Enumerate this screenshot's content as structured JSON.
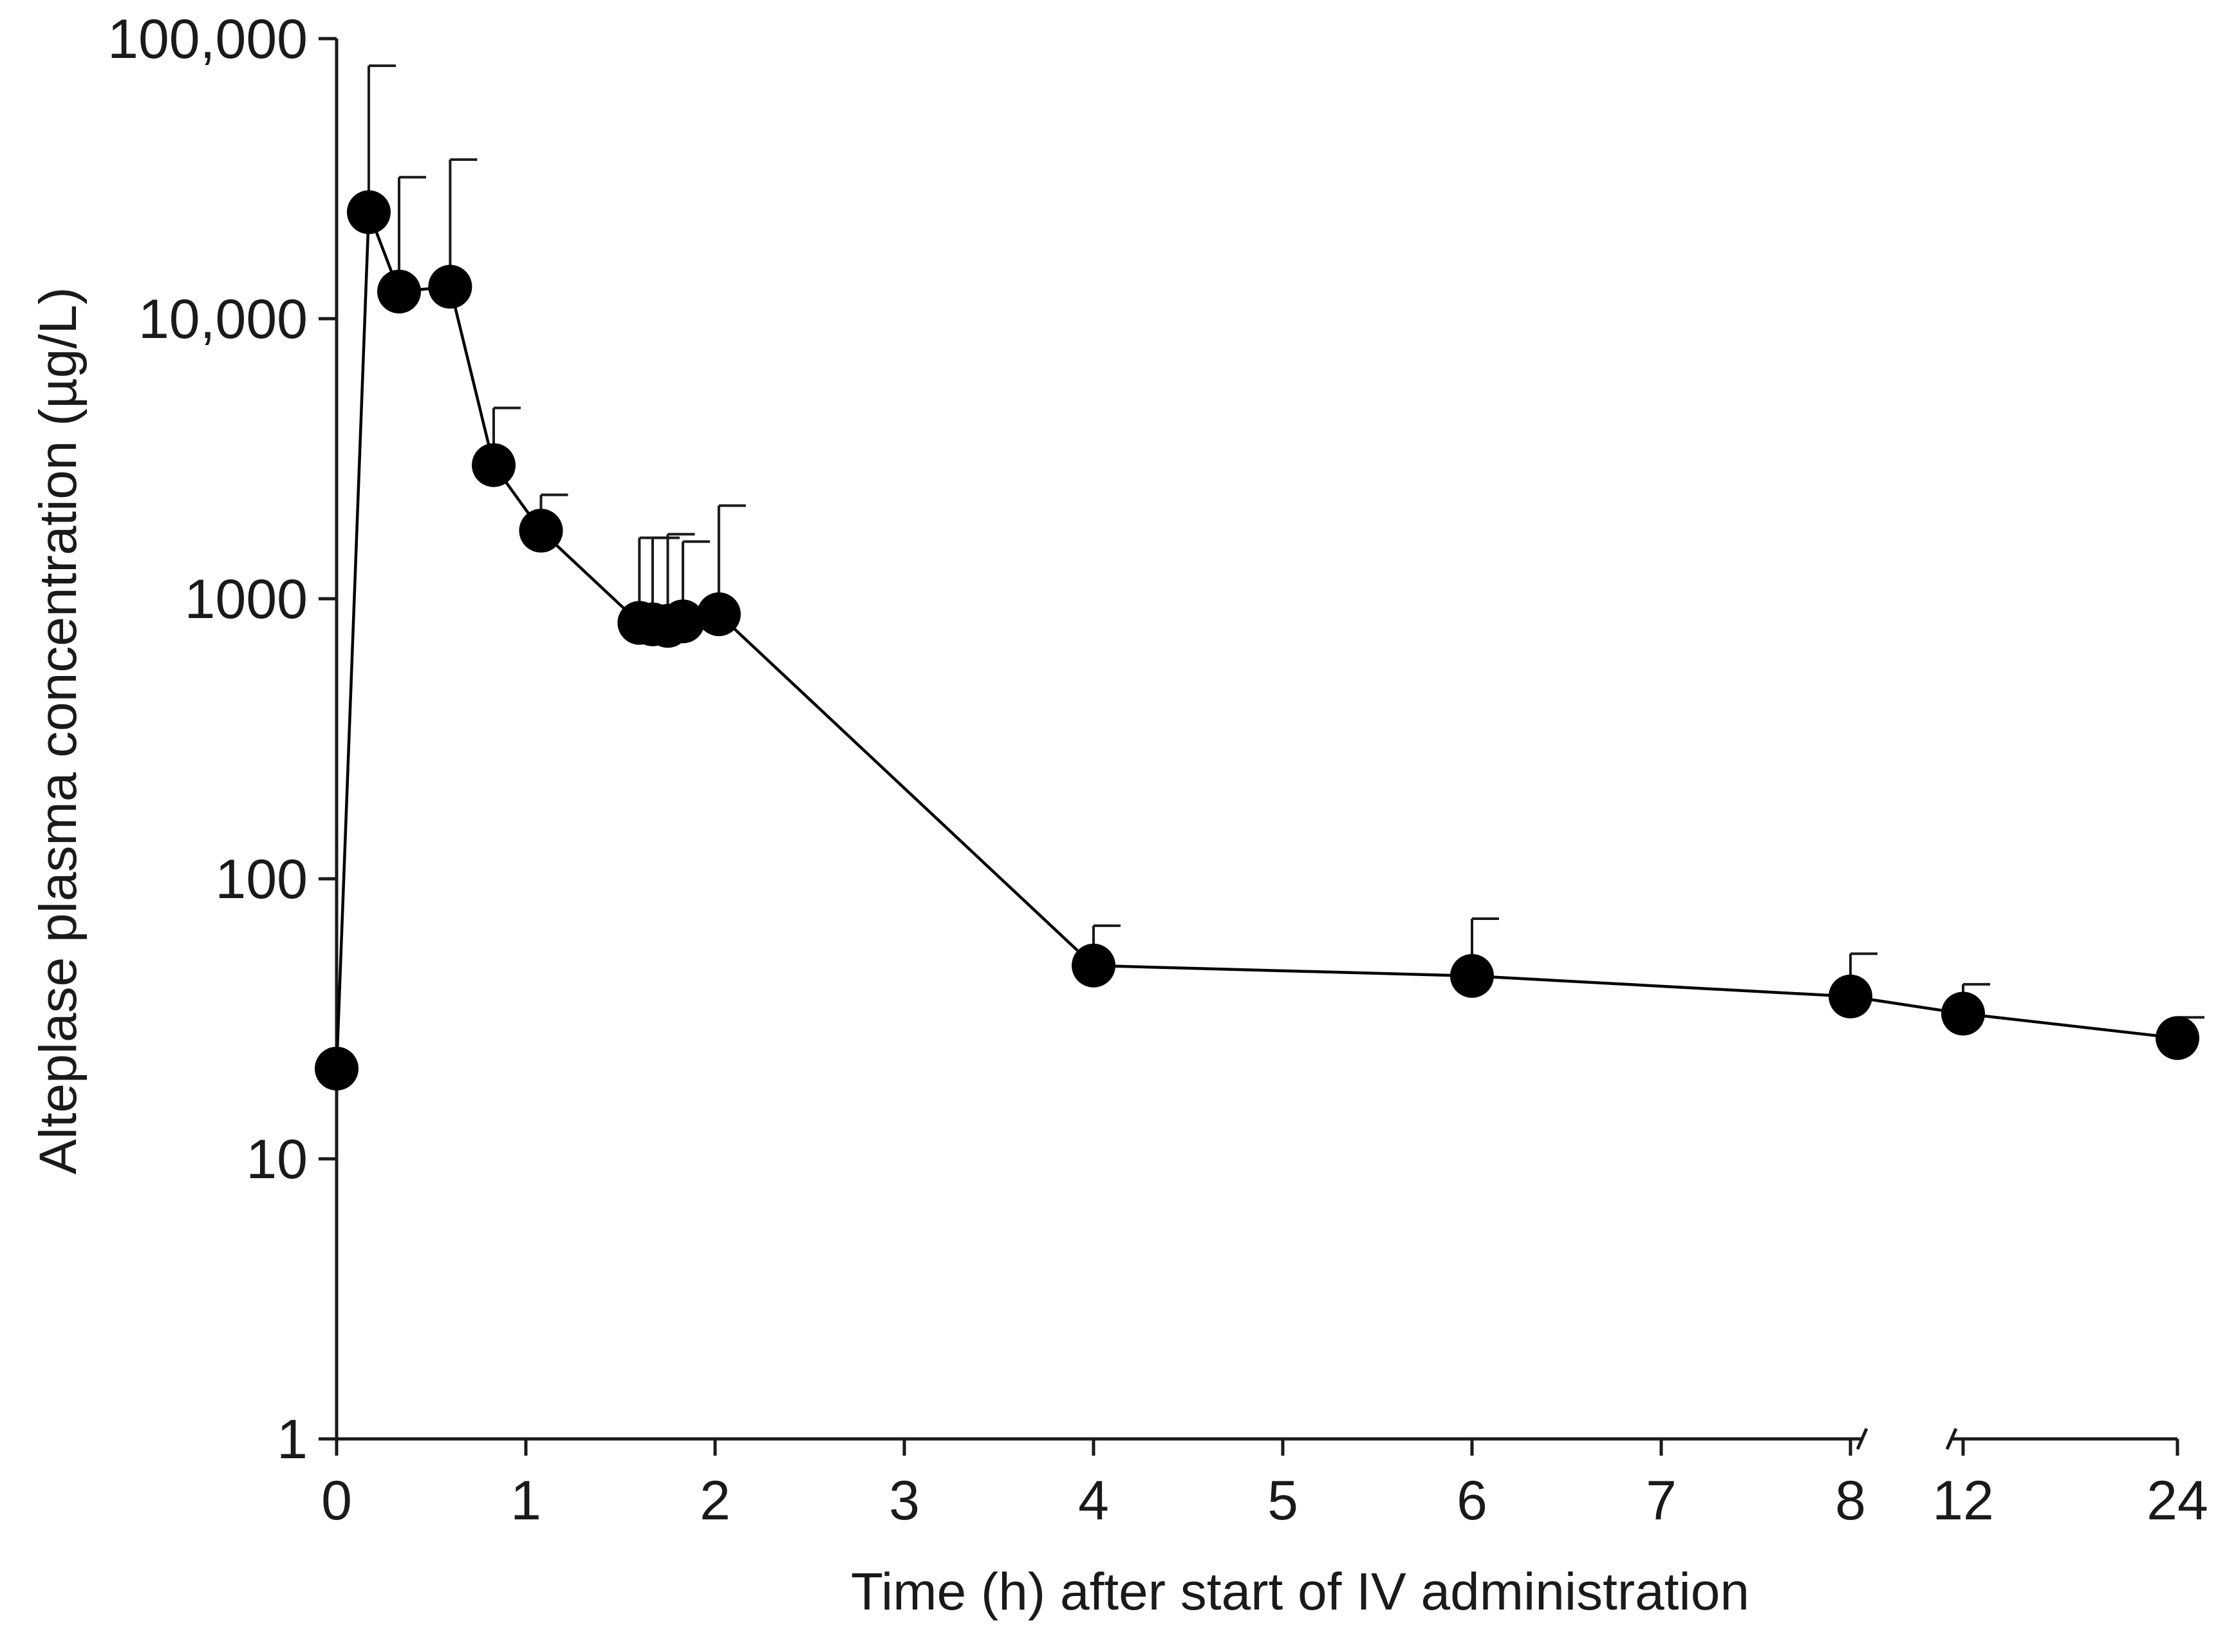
{
  "chart_data": {
    "type": "line",
    "title": "",
    "xlabel": "Time (h) after start of IV administration",
    "ylabel": "Alteplase plasma concentration (µg/L)",
    "y_scale": "log",
    "ylim": [
      1,
      100000
    ],
    "y_ticks": [
      {
        "value": 1,
        "label": "1"
      },
      {
        "value": 10,
        "label": "10"
      },
      {
        "value": 100,
        "label": "100"
      },
      {
        "value": 1000,
        "label": "1000"
      },
      {
        "value": 10000,
        "label": "10,000"
      },
      {
        "value": 100000,
        "label": "100,000"
      }
    ],
    "x_ticks": [
      {
        "value": 0,
        "label": "0"
      },
      {
        "value": 1,
        "label": "1"
      },
      {
        "value": 2,
        "label": "2"
      },
      {
        "value": 3,
        "label": "3"
      },
      {
        "value": 4,
        "label": "4"
      },
      {
        "value": 5,
        "label": "5"
      },
      {
        "value": 6,
        "label": "6"
      },
      {
        "value": 7,
        "label": "7"
      },
      {
        "value": 8,
        "label": "8"
      },
      {
        "value": 12,
        "label": "12"
      },
      {
        "value": 24,
        "label": "24"
      }
    ],
    "x_axis_breaks": [
      [
        8,
        12
      ]
    ],
    "series": [
      {
        "name": "Alteplase",
        "color": "#000000",
        "points": [
          {
            "x": 0,
            "y": 21,
            "err_upper": null
          },
          {
            "x": 0.17,
            "y": 24000,
            "err_upper": 80000
          },
          {
            "x": 0.33,
            "y": 12500,
            "err_upper": 32000
          },
          {
            "x": 0.6,
            "y": 13000,
            "err_upper": 37000
          },
          {
            "x": 0.83,
            "y": 3000,
            "err_upper": 4800
          },
          {
            "x": 1.08,
            "y": 1750,
            "err_upper": 2350
          },
          {
            "x": 1.6,
            "y": 820,
            "err_upper": 1650
          },
          {
            "x": 1.67,
            "y": 810,
            "err_upper": 1650
          },
          {
            "x": 1.75,
            "y": 800,
            "err_upper": 1700
          },
          {
            "x": 1.83,
            "y": 830,
            "err_upper": 1600
          },
          {
            "x": 2.02,
            "y": 880,
            "err_upper": 2150
          },
          {
            "x": 4,
            "y": 49,
            "err_upper": 68
          },
          {
            "x": 6,
            "y": 45,
            "err_upper": 72
          },
          {
            "x": 8,
            "y": 38,
            "err_upper": 54
          },
          {
            "x": 12,
            "y": 33,
            "err_upper": 42
          },
          {
            "x": 24,
            "y": 27,
            "err_upper": 32
          }
        ]
      }
    ]
  }
}
